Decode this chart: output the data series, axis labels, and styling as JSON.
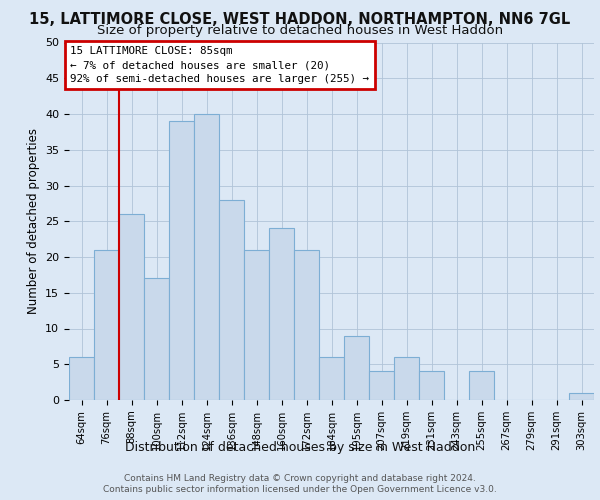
{
  "title": "15, LATTIMORE CLOSE, WEST HADDON, NORTHAMPTON, NN6 7GL",
  "subtitle": "Size of property relative to detached houses in West Haddon",
  "xlabel": "Distribution of detached houses by size in West Haddon",
  "ylabel": "Number of detached properties",
  "categories": [
    "64sqm",
    "76sqm",
    "88sqm",
    "100sqm",
    "112sqm",
    "124sqm",
    "136sqm",
    "148sqm",
    "160sqm",
    "172sqm",
    "184sqm",
    "195sqm",
    "207sqm",
    "219sqm",
    "231sqm",
    "243sqm",
    "255sqm",
    "267sqm",
    "279sqm",
    "291sqm",
    "303sqm"
  ],
  "values": [
    6,
    21,
    26,
    17,
    39,
    40,
    28,
    21,
    24,
    21,
    6,
    9,
    4,
    6,
    4,
    0,
    4,
    0,
    0,
    0,
    1
  ],
  "bar_color": "#c9d9eb",
  "bar_edge_color": "#7daed4",
  "vline_x": 1.5,
  "vline_color": "#cc0000",
  "annotation_line1": "15 LATTIMORE CLOSE: 85sqm",
  "annotation_line2": "← 7% of detached houses are smaller (20)",
  "annotation_line3": "92% of semi-detached houses are larger (255) →",
  "annotation_box_color": "#ffffff",
  "annotation_box_edge": "#cc0000",
  "ylim": [
    0,
    50
  ],
  "yticks": [
    0,
    5,
    10,
    15,
    20,
    25,
    30,
    35,
    40,
    45,
    50
  ],
  "footer1": "Contains HM Land Registry data © Crown copyright and database right 2024.",
  "footer2": "Contains public sector information licensed under the Open Government Licence v3.0.",
  "background_color": "#dce8f5",
  "plot_bg_color": "#dce8f5",
  "grid_color": "#b0c4d8",
  "title_fontsize": 10.5,
  "subtitle_fontsize": 9.5
}
